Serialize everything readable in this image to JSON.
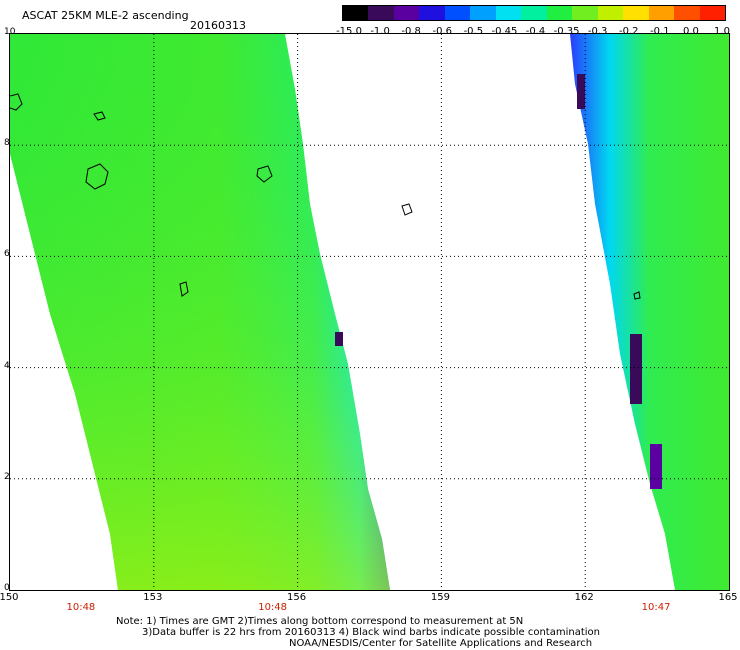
{
  "header": {
    "title": "ASCAT 25KM MLE-2 ascending",
    "date": "20160313"
  },
  "colorbar": {
    "labels": [
      "-15.0",
      "-1.0",
      "-0.8",
      "-0.6",
      "-0.5",
      "-0.45",
      "-0.4",
      "-0.35",
      "-0.3",
      "-0.2",
      "-0.1",
      "0.0",
      "1.0"
    ],
    "colors": [
      "#000000",
      "#3a0a5a",
      "#5a00a0",
      "#2010e0",
      "#0050ff",
      "#00a0ff",
      "#00e0f0",
      "#00f0a0",
      "#20ee40",
      "#70ee20",
      "#c0f000",
      "#ffe000",
      "#ffa000",
      "#ff5000",
      "#ff2000"
    ]
  },
  "axes": {
    "x_ticks": [
      "150",
      "153",
      "156",
      "159",
      "162",
      "165"
    ],
    "y_ticks": [
      "0",
      "2",
      "4",
      "6",
      "8",
      "10"
    ],
    "times": [
      "10:48",
      "10:48",
      "10:47"
    ]
  },
  "notes": {
    "line1": "Note: 1) Times are GMT 2)Times along bottom correspond to measurement at 5N",
    "line2": "3)Data buffer is 22 hrs from 20160313 4) Black wind barbs indicate possible contamination",
    "line3": "NOAA/NESDIS/Center for Satellite Applications and Research"
  },
  "map": {
    "lon_range": [
      150,
      165
    ],
    "lat_range": [
      0,
      10
    ],
    "swaths": [
      {
        "name": "left-swath",
        "lon": [
          150.0,
          153.3,
          156.3,
          156.0,
          152.3,
          150.0
        ]
      },
      {
        "name": "right-swath",
        "lon": [
          163.0,
          165.0,
          165.0,
          163.5,
          161.9
        ]
      }
    ]
  }
}
